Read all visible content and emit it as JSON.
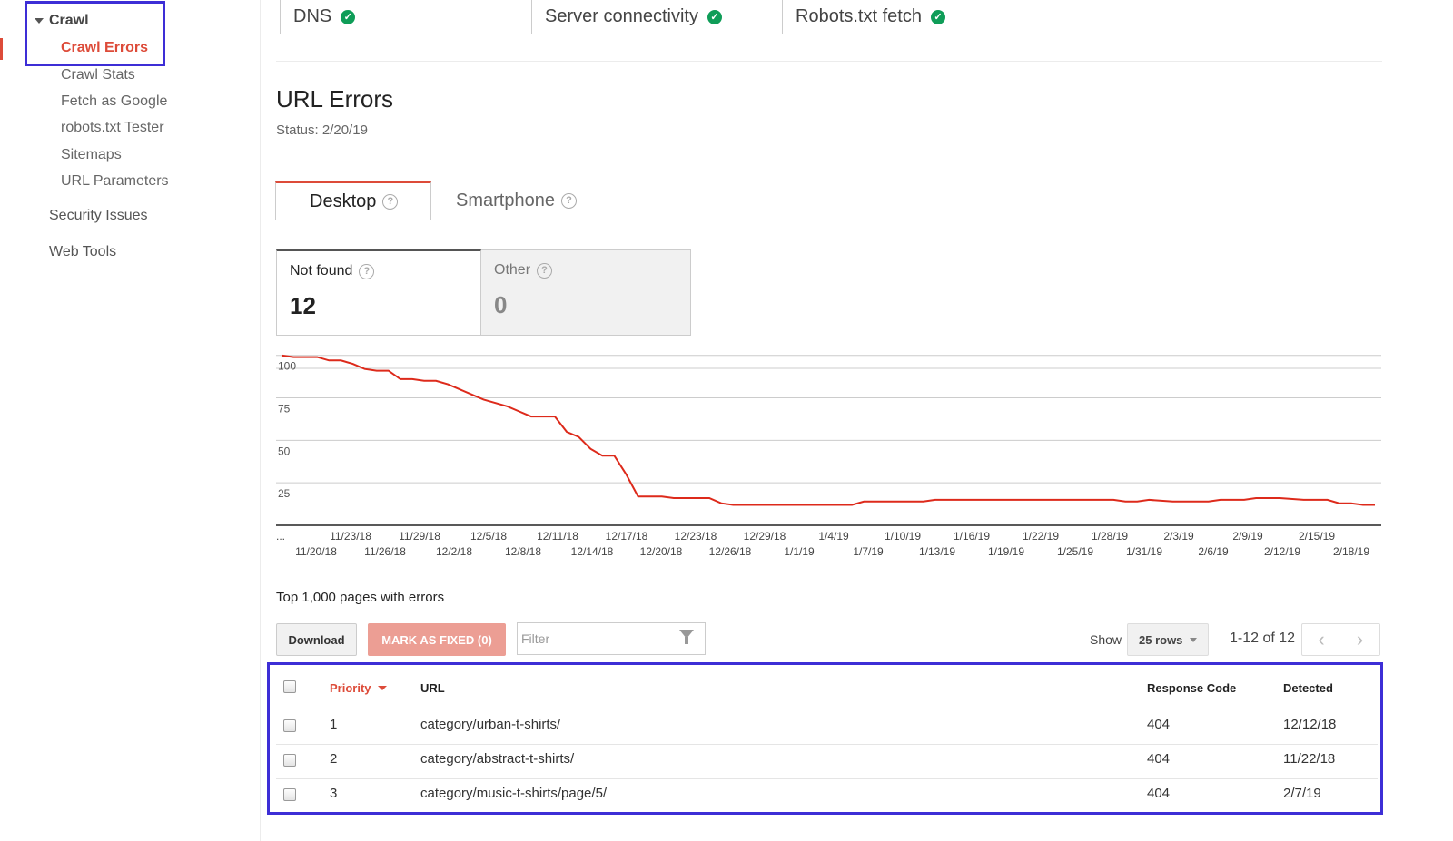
{
  "sidebar": {
    "group_label": "Crawl",
    "items": [
      {
        "label": "Crawl Errors",
        "active": true
      },
      {
        "label": "Crawl Stats"
      },
      {
        "label": "Fetch as Google"
      },
      {
        "label": "robots.txt Tester"
      },
      {
        "label": "Sitemaps"
      },
      {
        "label": "URL Parameters"
      }
    ],
    "top_items": [
      {
        "label": "Security Issues"
      },
      {
        "label": "Web Tools"
      }
    ]
  },
  "site_status": [
    {
      "label": "DNS",
      "ok": true
    },
    {
      "label": "Server connectivity",
      "ok": true
    },
    {
      "label": "Robots.txt fetch",
      "ok": true
    }
  ],
  "page": {
    "title": "URL Errors",
    "status": "Status: 2/20/19"
  },
  "tabs": [
    {
      "label": "Desktop",
      "active": true
    },
    {
      "label": "Smartphone",
      "active": false
    }
  ],
  "metrics": [
    {
      "label": "Not found",
      "value": "12",
      "selected": true
    },
    {
      "label": "Other",
      "value": "0",
      "selected": false
    }
  ],
  "chart_data": {
    "type": "line",
    "title": "",
    "xlabel": "",
    "ylabel": "",
    "ylim": [
      0,
      110
    ],
    "yticks": [
      25,
      50,
      75,
      100
    ],
    "grid": true,
    "x_tick_labels_top": [
      "...",
      "11/23/18",
      "11/29/18",
      "12/5/18",
      "12/11/18",
      "12/17/18",
      "12/23/18",
      "12/29/18",
      "1/4/19",
      "1/10/19",
      "1/16/19",
      "1/22/19",
      "1/28/19",
      "2/3/19",
      "2/9/19",
      "2/15/19"
    ],
    "x_tick_labels_bottom": [
      "11/20/18",
      "11/26/18",
      "12/2/18",
      "12/8/18",
      "12/14/18",
      "12/20/18",
      "12/26/18",
      "1/1/19",
      "1/7/19",
      "1/13/19",
      "1/19/19",
      "1/25/19",
      "1/31/19",
      "2/6/19",
      "2/12/19",
      "2/18/19"
    ],
    "series": [
      {
        "color": "#dd2a1b",
        "points": [
          [
            "11/20/18",
            100
          ],
          [
            "11/21/18",
            99
          ],
          [
            "11/23/18",
            99
          ],
          [
            "11/24/18",
            97
          ],
          [
            "11/25/18",
            97
          ],
          [
            "11/26/18",
            95
          ],
          [
            "11/27/18",
            92
          ],
          [
            "11/28/18",
            91
          ],
          [
            "11/29/18",
            91
          ],
          [
            "11/30/18",
            86
          ],
          [
            "12/1/18",
            86
          ],
          [
            "12/2/18",
            85
          ],
          [
            "12/3/18",
            85
          ],
          [
            "12/4/18",
            83
          ],
          [
            "12/5/18",
            80
          ],
          [
            "12/6/18",
            77
          ],
          [
            "12/7/18",
            74
          ],
          [
            "12/8/18",
            72
          ],
          [
            "12/9/18",
            70
          ],
          [
            "12/10/18",
            67
          ],
          [
            "12/11/18",
            64
          ],
          [
            "12/12/18",
            64
          ],
          [
            "12/13/18",
            64
          ],
          [
            "12/14/18",
            55
          ],
          [
            "12/15/18",
            52
          ],
          [
            "12/16/18",
            45
          ],
          [
            "12/17/18",
            41
          ],
          [
            "12/18/18",
            41
          ],
          [
            "12/19/18",
            30
          ],
          [
            "12/20/18",
            17
          ],
          [
            "12/21/18",
            17
          ],
          [
            "12/22/18",
            17
          ],
          [
            "12/23/18",
            16
          ],
          [
            "12/24/18",
            16
          ],
          [
            "12/25/18",
            16
          ],
          [
            "12/26/18",
            16
          ],
          [
            "12/27/18",
            13
          ],
          [
            "12/28/18",
            12
          ],
          [
            "1/2/19",
            12
          ],
          [
            "1/4/19",
            12
          ],
          [
            "1/7/19",
            12
          ],
          [
            "1/8/19",
            14
          ],
          [
            "1/13/19",
            14
          ],
          [
            "1/14/19",
            15
          ],
          [
            "1/18/19",
            15
          ],
          [
            "1/24/19",
            15
          ],
          [
            "1/29/19",
            15
          ],
          [
            "1/30/19",
            14
          ],
          [
            "1/31/19",
            14
          ],
          [
            "2/1/19",
            15
          ],
          [
            "2/3/19",
            14
          ],
          [
            "2/5/19",
            14
          ],
          [
            "2/6/19",
            14
          ],
          [
            "2/7/19",
            15
          ],
          [
            "2/9/19",
            15
          ],
          [
            "2/10/19",
            16
          ],
          [
            "2/12/19",
            16
          ],
          [
            "2/14/19",
            15
          ],
          [
            "2/16/19",
            15
          ],
          [
            "2/17/19",
            13
          ],
          [
            "2/18/19",
            13
          ],
          [
            "2/19/19",
            12
          ],
          [
            "2/20/19",
            12
          ]
        ]
      }
    ]
  },
  "table": {
    "caption": "Top 1,000 pages with errors",
    "download_label": "Download",
    "mark_fixed_label": "MARK AS FIXED (0)",
    "filter_placeholder": "Filter",
    "show_label": "Show",
    "rows_select": "25 rows",
    "pager": "1-12 of 12",
    "prev": "‹",
    "next": "›",
    "headers": {
      "priority": "Priority",
      "url": "URL",
      "response_code": "Response Code",
      "detected": "Detected"
    },
    "rows": [
      {
        "priority": "1",
        "url": "category/urban-t-shirts/",
        "response_code": "404",
        "detected": "12/12/18"
      },
      {
        "priority": "2",
        "url": "category/abstract-t-shirts/",
        "response_code": "404",
        "detected": "11/22/18"
      },
      {
        "priority": "3",
        "url": "category/music-t-shirts/page/5/",
        "response_code": "404",
        "detected": "2/7/19"
      }
    ]
  }
}
